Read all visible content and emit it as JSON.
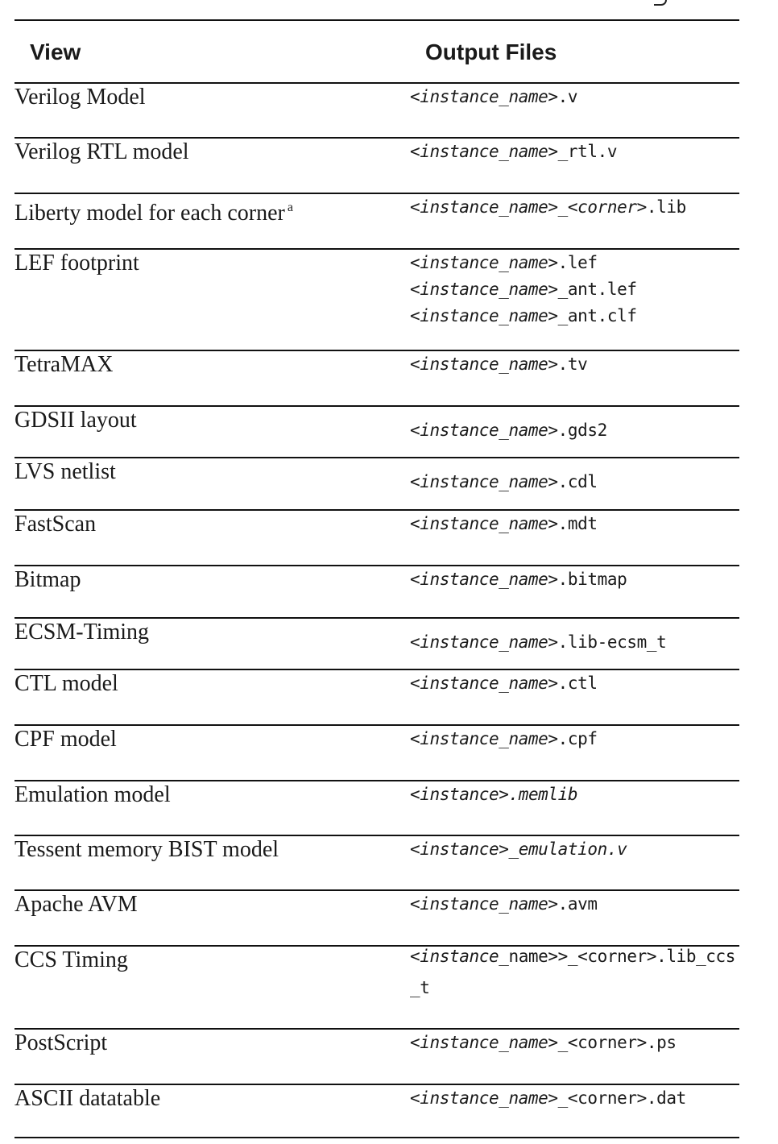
{
  "table": {
    "headers": {
      "view": "View",
      "files": "Output Files"
    },
    "rows": [
      {
        "view": "Verilog Model",
        "files": [
          [
            [
              "<",
              false
            ],
            [
              "instance_name",
              true
            ],
            [
              ">.v",
              false
            ]
          ]
        ]
      },
      {
        "view": "Verilog RTL model",
        "files": [
          [
            [
              "<",
              false
            ],
            [
              "instance_name",
              true
            ],
            [
              ">_rtl.v",
              false
            ]
          ]
        ]
      },
      {
        "view": "Liberty model for each corner",
        "note": "a",
        "files": [
          [
            [
              "<",
              false
            ],
            [
              "instance_name",
              true
            ],
            [
              ">_<",
              false
            ],
            [
              "corner",
              true
            ],
            [
              ">.lib",
              false
            ]
          ]
        ]
      },
      {
        "view": "LEF footprint",
        "files": [
          [
            [
              "<",
              false
            ],
            [
              "instance_name",
              true
            ],
            [
              ">.lef",
              false
            ]
          ],
          [
            [
              "<",
              false
            ],
            [
              "instance_name",
              true
            ],
            [
              ">_ant.lef",
              false
            ]
          ],
          [
            [
              "<",
              false
            ],
            [
              "instance_name",
              true
            ],
            [
              ">_ant.clf",
              false
            ]
          ]
        ]
      },
      {
        "view": "TetraMAX",
        "files": [
          [
            [
              "<",
              false
            ],
            [
              "instance_name",
              true
            ],
            [
              ">.tv",
              false
            ]
          ]
        ]
      },
      {
        "view": "GDSII layout",
        "files": [
          [
            [
              "<",
              false
            ],
            [
              "instance_name",
              true
            ],
            [
              ">.gds2",
              false
            ]
          ]
        ]
      },
      {
        "view": "LVS netlist",
        "files": [
          [
            [
              "<",
              false
            ],
            [
              "instance_name",
              true
            ],
            [
              ">.cdl",
              false
            ]
          ]
        ]
      },
      {
        "view": "FastScan",
        "files": [
          [
            [
              "<",
              false
            ],
            [
              "instance_name",
              true
            ],
            [
              ">.mdt",
              false
            ]
          ]
        ]
      },
      {
        "view": "Bitmap",
        "files": [
          [
            [
              "<",
              false
            ],
            [
              "instance_name",
              true
            ],
            [
              ">.bitmap",
              false
            ]
          ]
        ]
      },
      {
        "view": "ECSM-Timing",
        "files": [
          [
            [
              "<",
              false
            ],
            [
              "instance_name",
              true
            ],
            [
              ">.lib-ecsm_t",
              false
            ]
          ]
        ]
      },
      {
        "view": "CTL model",
        "files": [
          [
            [
              "<",
              false
            ],
            [
              "instance_name",
              true
            ],
            [
              ">.ctl",
              false
            ]
          ]
        ]
      },
      {
        "view": "CPF model",
        "files": [
          [
            [
              "<",
              false
            ],
            [
              "instance_name",
              true
            ],
            [
              ">.cpf",
              false
            ]
          ]
        ]
      },
      {
        "view": "Emulation model",
        "files": [
          [
            [
              "<",
              false
            ],
            [
              "instance",
              true
            ],
            [
              ">",
              false
            ],
            [
              ".memlib",
              true
            ]
          ]
        ]
      },
      {
        "view": "Tessent memory BIST model",
        "files": [
          [
            [
              "<",
              false
            ],
            [
              "instance",
              true
            ],
            [
              ">",
              false
            ],
            [
              "_emulation.v",
              true
            ]
          ]
        ]
      },
      {
        "view": "Apache AVM",
        "files": [
          [
            [
              "<",
              false
            ],
            [
              "instance_name",
              true
            ],
            [
              ">.avm",
              false
            ]
          ]
        ]
      },
      {
        "view": "CCS Timing",
        "wrap": true,
        "files": [
          [
            [
              "<",
              false
            ],
            [
              "instance",
              true
            ],
            [
              "_name>>_<corner>.lib_ccs_t",
              false
            ]
          ]
        ]
      },
      {
        "view": "PostScript",
        "files": [
          [
            [
              "<",
              false
            ],
            [
              "instance_name",
              true
            ],
            [
              ">_<corner>.ps",
              false
            ]
          ]
        ]
      },
      {
        "view": "ASCII datatable",
        "files": [
          [
            [
              "<",
              false
            ],
            [
              "instance_name",
              true
            ],
            [
              ">_<corner>.dat",
              false
            ]
          ]
        ]
      }
    ]
  }
}
